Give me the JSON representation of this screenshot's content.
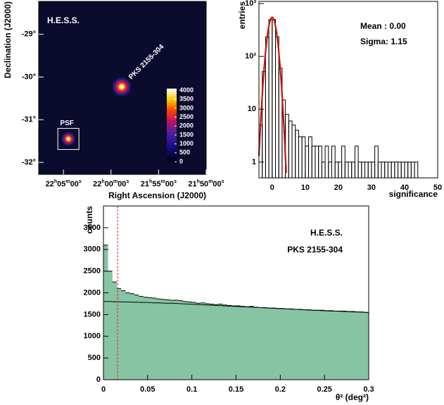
{
  "chart_data": [
    {
      "type": "heatmap",
      "x_label": "Right Ascension (J2000)",
      "y_label": "Declination (J2000)",
      "annotations": [
        "H.E.S.S."
      ],
      "xlim": [
        331.9,
        327.5
      ],
      "xticks": [
        {
          "value": 331.25,
          "label": "22h05m00s"
        },
        {
          "value": 330,
          "label": "22h00m00s"
        },
        {
          "value": 328.75,
          "label": "21h55m00s"
        },
        {
          "value": 327.5,
          "label": "21h50m00s"
        }
      ],
      "ylim": [
        -32.28,
        -28.23
      ],
      "yticks": [
        {
          "value": -29,
          "label": "-29°"
        },
        {
          "value": -30,
          "label": "-30°"
        },
        {
          "value": -31,
          "label": "-31°"
        },
        {
          "value": -32,
          "label": "-32°"
        }
      ],
      "zlim": [
        0,
        4100
      ],
      "zticks": [
        0,
        500,
        1000,
        1500,
        2000,
        2500,
        3000,
        3500,
        4000
      ],
      "sources": [
        {
          "label": "PKS 2155-304",
          "ra": 329.72,
          "dec": -30.23,
          "boxed": false
        },
        {
          "label": "PSF",
          "ra": 331.12,
          "dec": -31.45,
          "boxed": true
        }
      ]
    },
    {
      "type": "histogram",
      "ylog": true,
      "x_label": "significance",
      "y_label": "entries",
      "annotations": [
        "Mean : 0.00",
        "Sigma: 1.15"
      ],
      "xlim": [
        -4,
        50
      ],
      "xticks": [
        0,
        10,
        20,
        30,
        40,
        50
      ],
      "ylim": [
        0.5,
        1100
      ],
      "yticks": [
        1,
        10,
        {
          "value": 100,
          "label": "10²"
        },
        {
          "value": 1000,
          "label": "10³"
        }
      ],
      "bins": [
        -4,
        -3,
        -2,
        -1,
        0,
        1,
        2,
        3,
        4,
        5,
        6,
        7,
        8,
        9,
        10,
        11,
        12,
        13,
        14,
        15,
        16,
        17,
        18,
        19,
        20,
        21,
        22,
        23,
        24,
        25,
        26,
        27,
        28,
        29,
        30,
        31,
        32,
        33,
        34,
        35,
        36,
        37,
        38,
        39,
        40,
        41,
        42,
        43,
        44
      ],
      "series": [
        {
          "color": "#000000",
          "fill": false,
          "values": [
            5,
            52,
            235,
            500,
            500,
            235,
            60,
            15,
            8,
            6,
            5,
            4,
            3,
            3,
            2,
            3,
            2,
            2,
            2,
            1,
            2,
            1,
            2,
            1,
            1,
            2,
            1,
            1,
            1,
            2,
            1,
            1,
            1,
            1,
            1,
            2,
            1,
            1,
            1,
            1,
            1,
            1,
            1,
            1,
            1,
            1,
            1,
            1
          ]
        }
      ],
      "fit": {
        "mean": 0,
        "sigma": 1.15,
        "amplitude": 550,
        "color": "#cc1111"
      }
    },
    {
      "type": "histogram",
      "ylog": false,
      "x_label": "θ² (deg²)",
      "y_label": "counts",
      "annotations": [
        "H.E.S.S.",
        "PKS 2155-304"
      ],
      "xlim": [
        0,
        0.3
      ],
      "xticks": [
        0,
        0.05,
        0.1,
        0.15,
        0.2,
        0.25,
        0.3
      ],
      "ylim": [
        0,
        4000
      ],
      "yticks": [
        0,
        500,
        1000,
        1500,
        2000,
        2500,
        3000,
        3500
      ],
      "bins": [
        0,
        0.005,
        0.01,
        0.015,
        0.02,
        0.025,
        0.03,
        0.035,
        0.04,
        0.045,
        0.05,
        0.055,
        0.06,
        0.065,
        0.07,
        0.075,
        0.08,
        0.085,
        0.09,
        0.095,
        0.1,
        0.105,
        0.11,
        0.115,
        0.12,
        0.125,
        0.13,
        0.135,
        0.14,
        0.145,
        0.15,
        0.155,
        0.16,
        0.165,
        0.17,
        0.175,
        0.18,
        0.185,
        0.19,
        0.195,
        0.2,
        0.205,
        0.21,
        0.215,
        0.22,
        0.225,
        0.23,
        0.235,
        0.24,
        0.245,
        0.25,
        0.255,
        0.26,
        0.265,
        0.27,
        0.275,
        0.28,
        0.285,
        0.29,
        0.295,
        0.3
      ],
      "series": [
        {
          "color": "#87c4a3",
          "fill": true,
          "edge_color": "#000000",
          "values": [
            3100,
            2500,
            2250,
            2100,
            2050,
            2000,
            1980,
            1950,
            1920,
            1900,
            1890,
            1880,
            1860,
            1850,
            1840,
            1830,
            1830,
            1820,
            1800,
            1790,
            1780,
            1760,
            1770,
            1750,
            1740,
            1730,
            1740,
            1720,
            1710,
            1700,
            1700,
            1690,
            1680,
            1690,
            1670,
            1660,
            1660,
            1650,
            1650,
            1640,
            1640,
            1630,
            1630,
            1620,
            1620,
            1610,
            1610,
            1600,
            1600,
            1600,
            1590,
            1590,
            1580,
            1580,
            1580,
            1570,
            1570,
            1560,
            1560,
            1550
          ]
        },
        {
          "color": "#000000",
          "fill": false,
          "values": [
            1800,
            1800,
            1795,
            1795,
            1790,
            1790,
            1785,
            1785,
            1780,
            1780,
            1775,
            1770,
            1770,
            1765,
            1760,
            1760,
            1755,
            1750,
            1745,
            1740,
            1735,
            1730,
            1725,
            1720,
            1715,
            1710,
            1705,
            1700,
            1695,
            1690,
            1685,
            1680,
            1675,
            1670,
            1665,
            1660,
            1655,
            1650,
            1645,
            1640,
            1635,
            1630,
            1625,
            1620,
            1615,
            1610,
            1605,
            1600,
            1595,
            1590,
            1585,
            1580,
            1580,
            1575,
            1570,
            1565,
            1560,
            1560,
            1555,
            1550
          ]
        }
      ],
      "cut": 0.016,
      "cut_color": "#ee2222"
    }
  ]
}
